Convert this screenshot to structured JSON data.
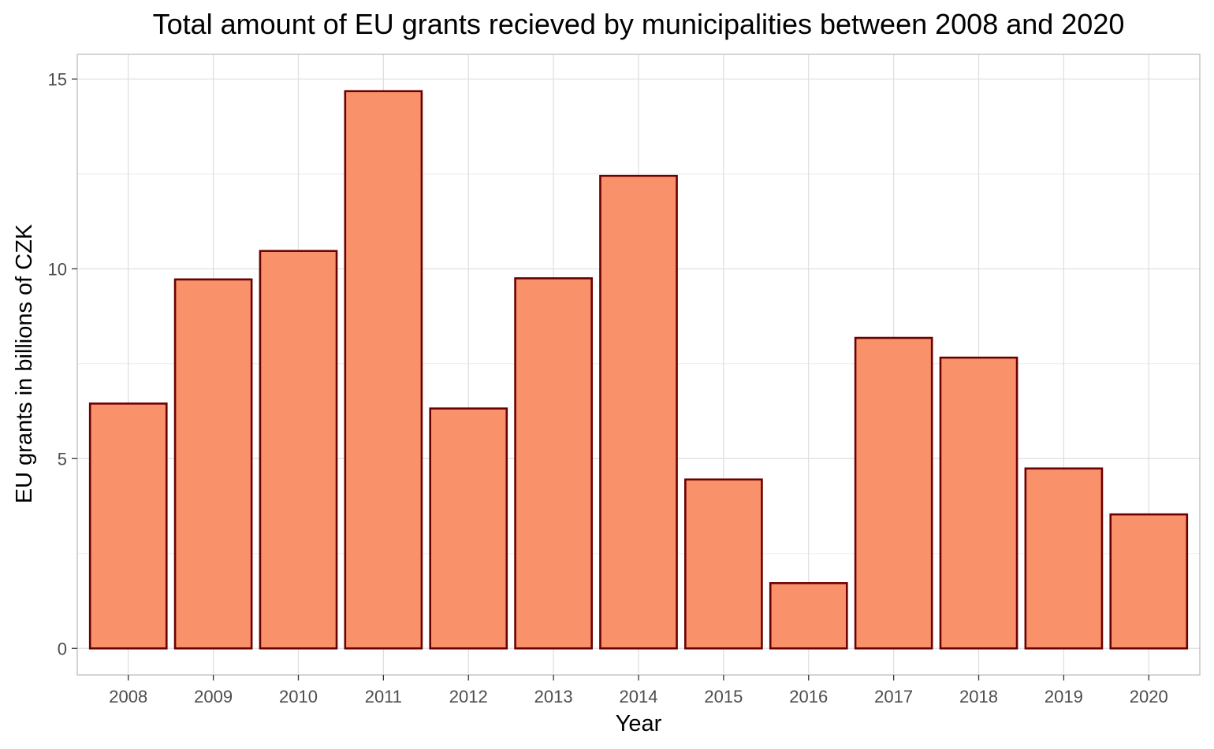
{
  "chart_data": {
    "type": "bar",
    "title": "Total amount of EU grants recieved by municipalities between 2008 and 2020",
    "xlabel": "Year",
    "ylabel": "EU grants in billions of CZK",
    "categories": [
      "2008",
      "2009",
      "2010",
      "2011",
      "2012",
      "2013",
      "2014",
      "2015",
      "2016",
      "2017",
      "2018",
      "2019",
      "2020"
    ],
    "values": [
      6.45,
      9.72,
      10.47,
      14.68,
      6.32,
      9.75,
      12.45,
      4.45,
      1.72,
      8.18,
      7.66,
      4.74,
      3.53
    ],
    "ylim": [
      -0.7,
      15.65
    ],
    "yticks": [
      0,
      5,
      10,
      15
    ],
    "grid": true,
    "legend": "none",
    "colors": {
      "bar_fill": "#f9916a",
      "bar_stroke": "#6b0000",
      "grid": "#dedede",
      "panel_border": "#bdbdbd"
    }
  }
}
